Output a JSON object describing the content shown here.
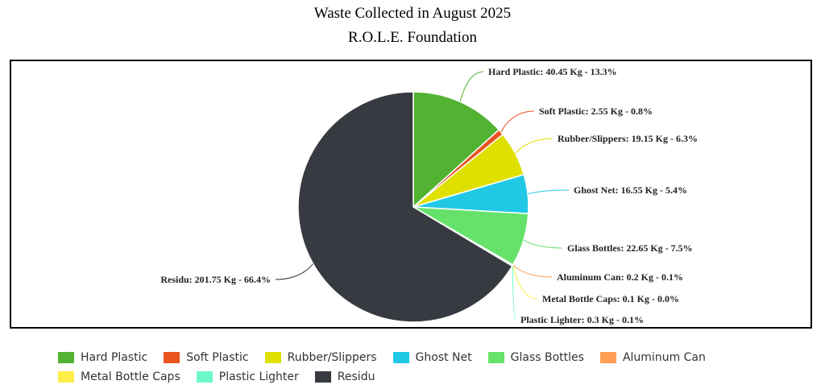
{
  "chart_data": {
    "type": "pie",
    "title": "Waste Collected in August 2025",
    "subtitle": "R.O.L.E. Foundation",
    "slices": [
      {
        "name": "Hard Plastic",
        "value": 40.45,
        "percent": 13.3,
        "color": "#52b232",
        "label": "Hard Plastic: 40.45 Kg - 13.3%"
      },
      {
        "name": "Soft Plastic",
        "value": 2.55,
        "percent": 0.8,
        "color": "#e8541e",
        "label": "Soft Plastic: 2.55 Kg - 0.8%"
      },
      {
        "name": "Rubber/Slippers",
        "value": 19.15,
        "percent": 6.3,
        "color": "#dfe000",
        "label": "Rubber/Slippers: 19.15 Kg - 6.3%"
      },
      {
        "name": "Ghost Net",
        "value": 16.55,
        "percent": 5.4,
        "color": "#21c8e6",
        "label": "Ghost Net: 16.55 Kg - 5.4%"
      },
      {
        "name": "Glass Bottles",
        "value": 22.65,
        "percent": 7.5,
        "color": "#66e26a",
        "label": "Glass Bottles: 22.65 Kg - 7.5%"
      },
      {
        "name": "Aluminum Can",
        "value": 0.2,
        "percent": 0.1,
        "color": "#ff9d55",
        "label": "Aluminum Can: 0.2 Kg - 0.1%"
      },
      {
        "name": "Metal Bottle Caps",
        "value": 0.1,
        "percent": 0.0,
        "color": "#ffee4a",
        "label": "Metal Bottle Caps: 0.1 Kg - 0.0%"
      },
      {
        "name": "Plastic Lighter",
        "value": 0.3,
        "percent": 0.1,
        "color": "#6ef9c8",
        "label": "Plastic Lighter: 0.3 Kg - 0.1%"
      },
      {
        "name": "Residu",
        "value": 201.75,
        "percent": 66.4,
        "color": "#373a40",
        "label": "Residu: 201.75 Kg - 66.4%"
      }
    ],
    "legend_position": "bottom"
  }
}
